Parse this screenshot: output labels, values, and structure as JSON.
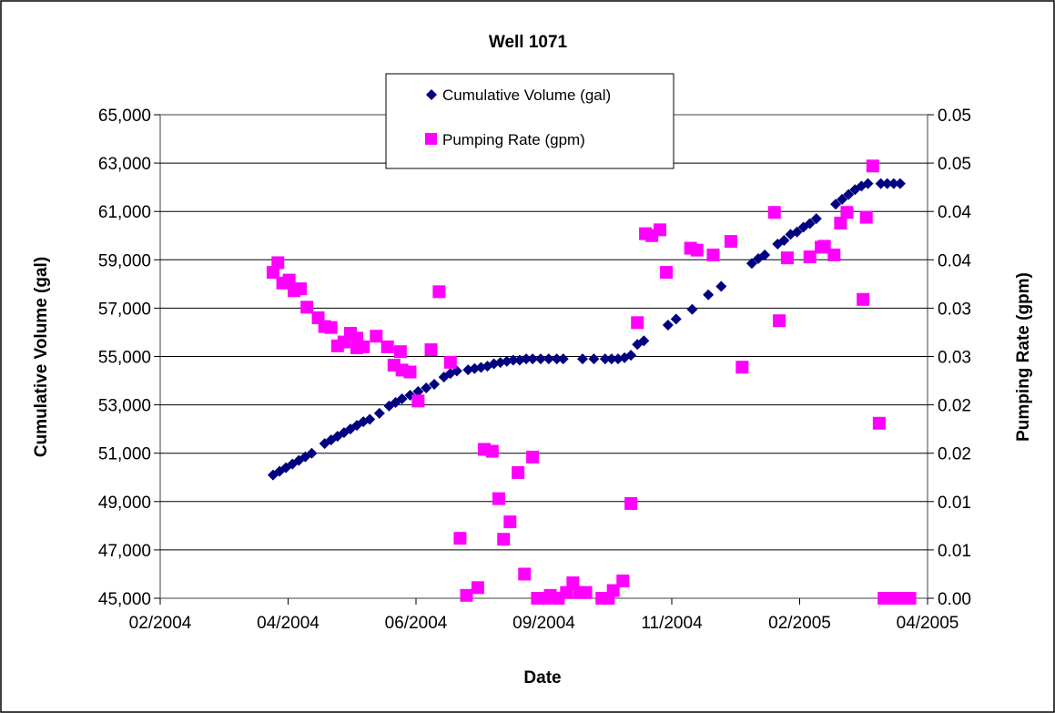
{
  "chart_data": {
    "type": "scatter",
    "title": "Well 1071",
    "xlabel": "Date",
    "ylabel": "Cumulative Volume (gal)",
    "ylabel_right": "Pumping Rate (gpm)",
    "x_ticks": [
      "02/2004",
      "04/2004",
      "06/2004",
      "09/2004",
      "11/2004",
      "02/2005",
      "04/2005"
    ],
    "y_left_ticks": [
      "45,000",
      "47,000",
      "49,000",
      "51,000",
      "53,000",
      "55,000",
      "57,000",
      "59,000",
      "61,000",
      "63,000",
      "65,000"
    ],
    "y_right_ticks": [
      "0.00",
      "0.01",
      "0.01",
      "0.02",
      "0.02",
      "0.03",
      "0.03",
      "0.04",
      "0.04",
      "0.05",
      "0.05"
    ],
    "ylim_left": [
      45000,
      65000
    ],
    "ylim_right": [
      0,
      0.05
    ],
    "xlim": [
      "2004-01-05",
      "2005-04-25"
    ],
    "grid": "horizontal",
    "legend_position": "top-center",
    "series": [
      {
        "name": "Cumulative Volume (gal)",
        "axis": "left",
        "marker": "diamond",
        "color": "#000080",
        "points": [
          [
            "2004-03-15",
            50100
          ],
          [
            "2004-03-19",
            50250
          ],
          [
            "2004-03-23",
            50400
          ],
          [
            "2004-03-27",
            50550
          ],
          [
            "2004-03-31",
            50700
          ],
          [
            "2004-04-04",
            50850
          ],
          [
            "2004-04-08",
            51000
          ],
          [
            "2004-04-16",
            51400
          ],
          [
            "2004-04-20",
            51550
          ],
          [
            "2004-04-24",
            51700
          ],
          [
            "2004-04-28",
            51850
          ],
          [
            "2004-05-02",
            52000
          ],
          [
            "2004-05-06",
            52150
          ],
          [
            "2004-05-10",
            52300
          ],
          [
            "2004-05-14",
            52400
          ],
          [
            "2004-05-20",
            52650
          ],
          [
            "2004-05-26",
            52950
          ],
          [
            "2004-05-30",
            53100
          ],
          [
            "2004-06-03",
            53250
          ],
          [
            "2004-06-08",
            53400
          ],
          [
            "2004-06-13",
            53550
          ],
          [
            "2004-06-18",
            53700
          ],
          [
            "2004-06-23",
            53850
          ],
          [
            "2004-06-29",
            54150
          ],
          [
            "2004-07-03",
            54300
          ],
          [
            "2004-07-07",
            54400
          ],
          [
            "2004-07-14",
            54450
          ],
          [
            "2004-07-18",
            54500
          ],
          [
            "2004-07-22",
            54550
          ],
          [
            "2004-07-26",
            54600
          ],
          [
            "2004-07-30",
            54700
          ],
          [
            "2004-08-03",
            54750
          ],
          [
            "2004-08-07",
            54800
          ],
          [
            "2004-08-11",
            54850
          ],
          [
            "2004-08-15",
            54850
          ],
          [
            "2004-08-19",
            54900
          ],
          [
            "2004-08-23",
            54900
          ],
          [
            "2004-08-28",
            54900
          ],
          [
            "2004-09-02",
            54900
          ],
          [
            "2004-09-07",
            54900
          ],
          [
            "2004-09-11",
            54900
          ],
          [
            "2004-09-23",
            54900
          ],
          [
            "2004-09-30",
            54900
          ],
          [
            "2004-10-07",
            54900
          ],
          [
            "2004-10-11",
            54900
          ],
          [
            "2004-10-15",
            54900
          ],
          [
            "2004-10-19",
            54950
          ],
          [
            "2004-10-23",
            55050
          ],
          [
            "2004-10-27",
            55500
          ],
          [
            "2004-10-31",
            55650
          ],
          [
            "2004-11-15",
            56300
          ],
          [
            "2004-11-20",
            56550
          ],
          [
            "2004-11-30",
            56950
          ],
          [
            "2004-12-10",
            57550
          ],
          [
            "2004-12-18",
            57900
          ],
          [
            "2005-01-06",
            58850
          ],
          [
            "2005-01-10",
            59050
          ],
          [
            "2005-01-14",
            59200
          ],
          [
            "2005-01-22",
            59650
          ],
          [
            "2005-01-26",
            59800
          ],
          [
            "2005-01-30",
            60050
          ],
          [
            "2005-02-03",
            60150
          ],
          [
            "2005-02-07",
            60350
          ],
          [
            "2005-02-11",
            60500
          ],
          [
            "2005-02-15",
            60700
          ],
          [
            "2005-02-27",
            61300
          ],
          [
            "2005-03-03",
            61500
          ],
          [
            "2005-03-07",
            61700
          ],
          [
            "2005-03-11",
            61900
          ],
          [
            "2005-03-15",
            62050
          ],
          [
            "2005-03-19",
            62150
          ],
          [
            "2005-03-27",
            62150
          ],
          [
            "2005-03-31",
            62150
          ],
          [
            "2005-04-04",
            62150
          ],
          [
            "2005-04-08",
            62150
          ]
        ]
      },
      {
        "name": "Pumping Rate (gpm)",
        "axis": "right",
        "marker": "square",
        "color": "#ff00ff",
        "points": [
          [
            "2004-03-15",
            0.0337
          ],
          [
            "2004-03-18",
            0.0347
          ],
          [
            "2004-03-21",
            0.0326
          ],
          [
            "2004-03-25",
            0.0329
          ],
          [
            "2004-03-28",
            0.0318
          ],
          [
            "2004-04-01",
            0.032
          ],
          [
            "2004-04-05",
            0.0301
          ],
          [
            "2004-04-12",
            0.029
          ],
          [
            "2004-04-16",
            0.0281
          ],
          [
            "2004-04-20",
            0.028
          ],
          [
            "2004-04-24",
            0.0261
          ],
          [
            "2004-04-28",
            0.0265
          ],
          [
            "2004-05-02",
            0.0274
          ],
          [
            "2004-05-06",
            0.0269
          ],
          [
            "2004-05-06",
            0.0259
          ],
          [
            "2004-05-10",
            0.026
          ],
          [
            "2004-05-18",
            0.0271
          ],
          [
            "2004-05-25",
            0.026
          ],
          [
            "2004-05-29",
            0.0241
          ],
          [
            "2004-06-02",
            0.0255
          ],
          [
            "2004-06-03",
            0.0236
          ],
          [
            "2004-06-08",
            0.0234
          ],
          [
            "2004-06-13",
            0.0204
          ],
          [
            "2004-06-21",
            0.0257
          ],
          [
            "2004-06-26",
            0.0317
          ],
          [
            "2004-07-03",
            0.0244
          ],
          [
            "2004-07-09",
            0.0062
          ],
          [
            "2004-07-13",
            0.0003
          ],
          [
            "2004-07-20",
            0.0011
          ],
          [
            "2004-07-24",
            0.0154
          ],
          [
            "2004-07-29",
            0.0152
          ],
          [
            "2004-08-02",
            0.0103
          ],
          [
            "2004-08-05",
            0.0061
          ],
          [
            "2004-08-09",
            0.0079
          ],
          [
            "2004-08-14",
            0.013
          ],
          [
            "2004-08-18",
            0.0025
          ],
          [
            "2004-08-23",
            0.0146
          ],
          [
            "2004-08-26",
            0.0
          ],
          [
            "2004-08-31",
            0.0
          ],
          [
            "2004-09-03",
            0.0003
          ],
          [
            "2004-09-08",
            0.0
          ],
          [
            "2004-09-13",
            0.0006
          ],
          [
            "2004-09-17",
            0.0016
          ],
          [
            "2004-09-21",
            0.0006
          ],
          [
            "2004-09-25",
            0.0006
          ],
          [
            "2004-10-05",
            0.0
          ],
          [
            "2004-10-09",
            0.0
          ],
          [
            "2004-10-12",
            0.0008
          ],
          [
            "2004-10-18",
            0.0018
          ],
          [
            "2004-10-23",
            0.0098
          ],
          [
            "2004-10-27",
            0.0285
          ],
          [
            "2004-11-01",
            0.0377
          ],
          [
            "2004-11-05",
            0.0375
          ],
          [
            "2004-11-10",
            0.0381
          ],
          [
            "2004-11-14",
            0.0337
          ],
          [
            "2004-11-29",
            0.0362
          ],
          [
            "2004-12-03",
            0.036
          ],
          [
            "2004-12-13",
            0.0355
          ],
          [
            "2004-12-24",
            0.0369
          ],
          [
            "2004-12-31",
            0.0239
          ],
          [
            "2005-01-20",
            0.0399
          ],
          [
            "2005-01-23",
            0.0287
          ],
          [
            "2005-01-28",
            0.0352
          ],
          [
            "2005-02-11",
            0.0353
          ],
          [
            "2005-02-18",
            0.0363
          ],
          [
            "2005-02-20",
            0.0364
          ],
          [
            "2005-02-26",
            0.0355
          ],
          [
            "2005-03-02",
            0.0388
          ],
          [
            "2005-03-06",
            0.0399
          ],
          [
            "2005-03-16",
            0.0309
          ],
          [
            "2005-03-18",
            0.0394
          ],
          [
            "2005-03-22",
            0.0447
          ],
          [
            "2005-03-26",
            0.0181
          ],
          [
            "2005-03-29",
            0.0
          ],
          [
            "2005-04-02",
            0.0
          ],
          [
            "2005-04-06",
            0.0
          ],
          [
            "2005-04-10",
            0.0
          ],
          [
            "2005-04-14",
            0.0
          ]
        ]
      }
    ]
  }
}
